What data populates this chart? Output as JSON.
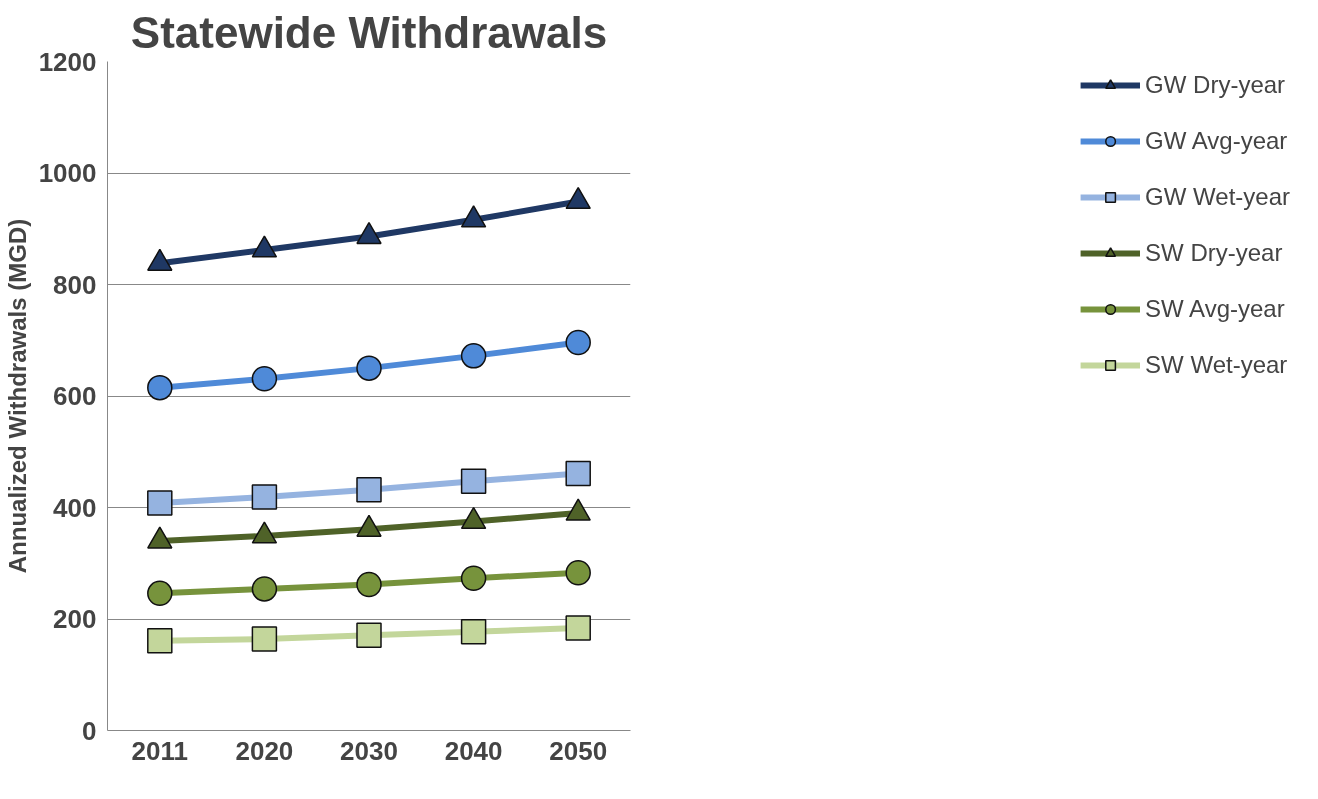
{
  "chart_data": {
    "type": "line",
    "title": "Statewide Withdrawals",
    "ylabel": "Annualized Withdrawals (MGD)",
    "categories": [
      "2011",
      "2020",
      "2030",
      "2040",
      "2050"
    ],
    "series": [
      {
        "name": "GW Dry-year",
        "color": "#1f3864",
        "marker": "triangle",
        "values": [
          838,
          862,
          886,
          916,
          949
        ]
      },
      {
        "name": "GW Avg-year",
        "color": "#4f8ad8",
        "marker": "circle",
        "values": [
          615,
          631,
          650,
          672,
          696
        ]
      },
      {
        "name": "GW Wet-year",
        "color": "#95b3e0",
        "marker": "square",
        "values": [
          408,
          419,
          432,
          447,
          461
        ]
      },
      {
        "name": "SW Dry-year",
        "color": "#4f6228",
        "marker": "triangle",
        "values": [
          340,
          349,
          361,
          375,
          390
        ]
      },
      {
        "name": "SW Avg-year",
        "color": "#77933c",
        "marker": "circle",
        "values": [
          246,
          254,
          262,
          273,
          283
        ]
      },
      {
        "name": "SW Wet-year",
        "color": "#c3d69b",
        "marker": "square",
        "values": [
          161,
          164,
          171,
          177,
          184
        ]
      }
    ],
    "ylim": [
      0,
      1200
    ],
    "yticks": [
      0,
      200,
      400,
      600,
      800,
      1000,
      1200
    ],
    "grid": "y",
    "legend": "right",
    "line_style": "solid"
  }
}
